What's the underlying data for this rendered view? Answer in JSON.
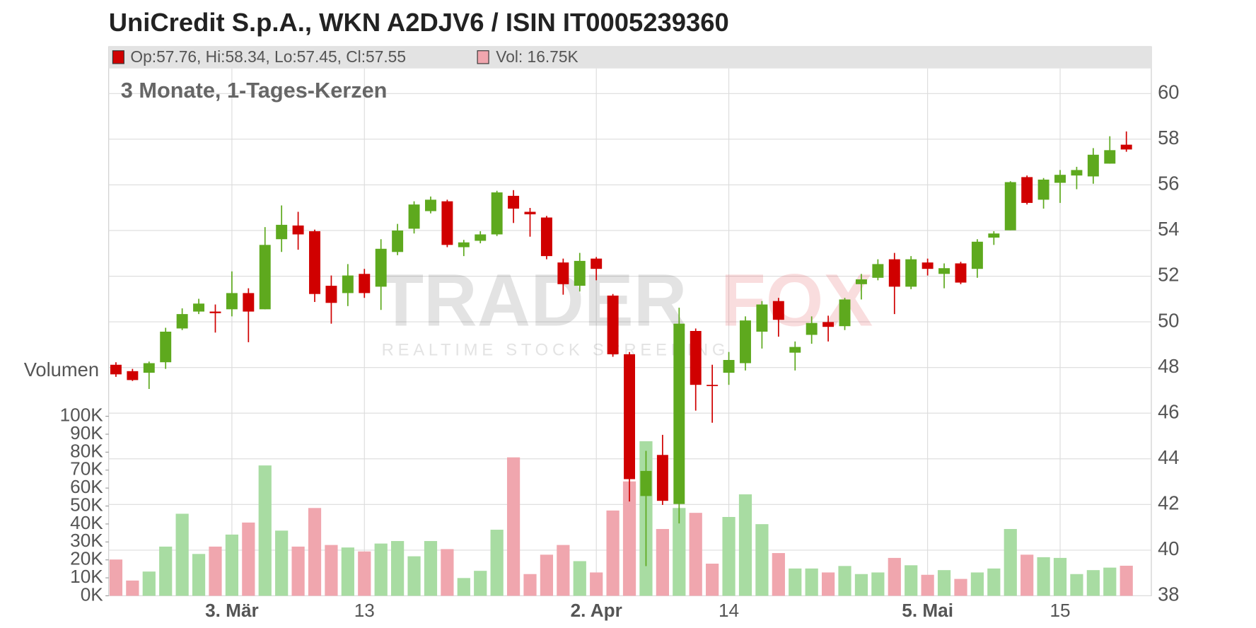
{
  "chart_data": {
    "type": "candlestick",
    "title": "UniCredit S.p.A., WKN A2DJV6 / ISIN IT0005239360",
    "subtitle": "3 Monate, 1-Tages-Kerzen",
    "legend": [
      "Op:57.76, Hi:58.34, Lo:57.45, Cl:57.55",
      "Vol: 16.75K"
    ],
    "volume_label": "Volumen",
    "watermark": [
      "TRADER",
      "FOX",
      "REALTIME STOCK SCREENING"
    ],
    "categories": [
      null,
      null,
      null,
      null,
      null,
      null,
      null,
      "3. Mär",
      null,
      null,
      null,
      null,
      null,
      null,
      null,
      "13",
      null,
      null,
      null,
      null,
      null,
      null,
      null,
      null,
      null,
      null,
      null,
      null,
      null,
      "2. Apr",
      null,
      null,
      null,
      null,
      null,
      null,
      null,
      "14",
      null,
      null,
      null,
      null,
      null,
      null,
      null,
      null,
      null,
      null,
      null,
      "5. Mai",
      null,
      null,
      null,
      null,
      null,
      null,
      null,
      "15",
      null,
      null,
      null,
      null
    ],
    "open": [
      48.12,
      47.84,
      47.77,
      48.23,
      49.71,
      50.45,
      50.45,
      50.55,
      51.26,
      50.55,
      53.62,
      54.22,
      53.97,
      51.58,
      51.26,
      52.1,
      51.54,
      53.06,
      54.08,
      54.85,
      55.28,
      53.27,
      53.55,
      53.83,
      55.52,
      54.82,
      54.57,
      52.6,
      51.58,
      52.77,
      51.15,
      48.58,
      42.37,
      44.17,
      42.02,
      49.6,
      47.24,
      47.77,
      48.19,
      49.57,
      50.91,
      48.65,
      49.43,
      49.99,
      49.81,
      51.65,
      51.93,
      52.74,
      51.54,
      52.6,
      52.1,
      52.56,
      52.32,
      53.69,
      54.01,
      56.34,
      55.35,
      56.09,
      56.41,
      56.37,
      56.93,
      57.76
    ],
    "high": [
      48.23,
      47.94,
      48.26,
      49.74,
      50.59,
      51.01,
      50.76,
      52.21,
      51.47,
      54.15,
      55.1,
      54.82,
      54.04,
      52.03,
      52.53,
      52.32,
      53.62,
      54.29,
      55.28,
      55.49,
      55.35,
      53.59,
      53.97,
      55.74,
      55.77,
      54.99,
      54.64,
      52.77,
      53.02,
      52.84,
      51.22,
      48.68,
      44.35,
      45.05,
      50.62,
      49.71,
      48.12,
      48.68,
      50.24,
      50.91,
      51.05,
      49.14,
      50.24,
      50.27,
      51.05,
      52.1,
      52.74,
      53.02,
      52.88,
      52.77,
      52.56,
      52.63,
      53.62,
      53.97,
      56.16,
      56.41,
      56.3,
      56.65,
      56.79,
      57.61,
      58.13,
      58.34
    ],
    "low": [
      47.59,
      47.41,
      47.06,
      47.94,
      49.64,
      50.34,
      49.53,
      50.24,
      49.11,
      50.55,
      53.06,
      53.16,
      50.87,
      49.92,
      50.69,
      51.05,
      50.52,
      52.92,
      53.87,
      54.75,
      53.27,
      52.88,
      53.44,
      53.76,
      54.33,
      53.73,
      52.74,
      51.19,
      51.33,
      51.82,
      48.47,
      42.13,
      39.3,
      41.98,
      41.17,
      46.11,
      45.58,
      47.24,
      47.87,
      48.83,
      49.35,
      47.87,
      49.04,
      49.14,
      49.64,
      50.98,
      51.82,
      50.34,
      51.43,
      52.03,
      51.47,
      51.65,
      51.93,
      53.37,
      54.01,
      55.14,
      54.96,
      55.21,
      55.81,
      56.05,
      56.93,
      57.45
    ],
    "close": [
      47.7,
      47.45,
      48.19,
      49.57,
      50.34,
      50.8,
      50.38,
      51.26,
      50.45,
      53.37,
      54.25,
      53.83,
      51.22,
      50.83,
      52.03,
      51.26,
      53.2,
      54.0,
      55.14,
      55.35,
      53.37,
      53.48,
      53.83,
      55.67,
      54.96,
      54.71,
      52.88,
      51.65,
      52.67,
      52.32,
      48.58,
      43.11,
      43.47,
      42.16,
      49.92,
      47.24,
      47.2,
      48.33,
      50.06,
      50.76,
      50.09,
      48.9,
      49.95,
      49.78,
      50.98,
      51.86,
      52.53,
      51.54,
      52.74,
      52.32,
      52.35,
      51.72,
      53.51,
      53.87,
      56.12,
      55.21,
      56.23,
      56.44,
      56.65,
      57.32,
      57.52,
      57.55
    ],
    "volume": [
      20.2,
      8.5,
      13.5,
      27.4,
      45.7,
      23.3,
      27.4,
      34.1,
      40.8,
      72.6,
      36.3,
      27.4,
      48.9,
      28.3,
      26.9,
      24.7,
      29.1,
      30.5,
      22.0,
      30.5,
      26.0,
      9.9,
      13.9,
      36.8,
      77.1,
      12.1,
      22.9,
      28.3,
      19.3,
      13.0,
      47.5,
      63.7,
      86.1,
      37.2,
      48.9,
      46.2,
      17.9,
      43.9,
      56.5,
      39.9,
      23.8,
      15.2,
      15.2,
      13.0,
      16.6,
      12.1,
      13.0,
      21.1,
      17.0,
      11.7,
      14.3,
      9.4,
      13.0,
      15.2,
      37.2,
      22.9,
      21.5,
      21.1,
      12.1,
      14.3,
      15.7,
      16.75
    ],
    "up_color": "#5ea91e",
    "down_color": "#d00000",
    "volume_up_color": "#a8dca2",
    "volume_down_color": "#f0a6ae",
    "ylim": [
      38,
      61.1
    ],
    "yticks": [
      38,
      40,
      42,
      44,
      46,
      48,
      50,
      52,
      54,
      56,
      58,
      60
    ],
    "y2lim": [
      0,
      100
    ],
    "y2ticks": [
      {
        "value": 0,
        "label": "0K"
      },
      {
        "value": 10,
        "label": "10K"
      },
      {
        "value": 20,
        "label": "20K"
      },
      {
        "value": 30,
        "label": "30K"
      },
      {
        "value": 40,
        "label": "40K"
      },
      {
        "value": 50,
        "label": "50K"
      },
      {
        "value": 60,
        "label": "60K"
      },
      {
        "value": 70,
        "label": "70K"
      },
      {
        "value": 80,
        "label": "80K"
      },
      {
        "value": 90,
        "label": "90K"
      },
      {
        "value": 100,
        "label": "100K"
      }
    ],
    "grid": true
  }
}
